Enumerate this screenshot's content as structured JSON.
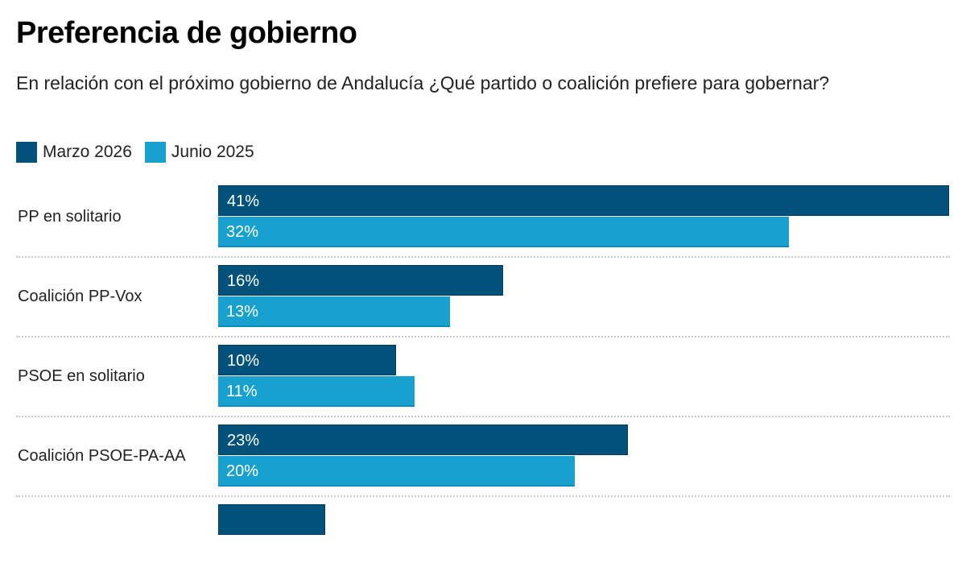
{
  "header": {
    "title": "Preferencia de gobierno",
    "subtitle": "En relación con el próximo gobierno de Andalucía ¿Qué partido o coalición prefiere para gobernar?"
  },
  "colors": {
    "series0": "#00527a",
    "series1": "#18a0cf"
  },
  "chart_data": {
    "type": "bar",
    "orientation": "horizontal",
    "title": "Preferencia de gobierno",
    "subtitle": "En relación con el próximo gobierno de Andalucía ¿Qué partido o coalición prefiere para gobernar?",
    "legend_position": "top-left",
    "legend": [
      "Marzo 2026",
      "Junio 2025"
    ],
    "categories": [
      "PP en solitario",
      "Coalición PP-Vox",
      "PSOE en solitario",
      "Coalición PSOE-PA-AA",
      ""
    ],
    "series": [
      {
        "name": "Marzo 2026",
        "values": [
          41,
          16,
          10,
          23,
          6
        ],
        "labels": [
          "41%",
          "16%",
          "10%",
          "23%",
          ""
        ]
      },
      {
        "name": "Junio 2025",
        "values": [
          32,
          13,
          11,
          20,
          null
        ],
        "labels": [
          "32%",
          "13%",
          "11%",
          "20%",
          ""
        ]
      }
    ],
    "xlim": [
      0,
      41
    ],
    "unit": "%",
    "grid": false
  }
}
